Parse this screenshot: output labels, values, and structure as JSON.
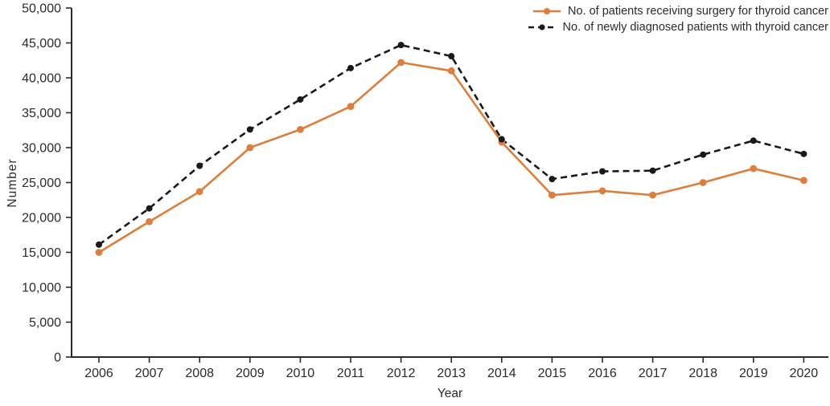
{
  "chart_data": {
    "type": "line",
    "title": "",
    "xlabel": "Year",
    "ylabel": "Number",
    "x": [
      2006,
      2007,
      2008,
      2009,
      2010,
      2011,
      2012,
      2013,
      2014,
      2015,
      2016,
      2017,
      2018,
      2019,
      2020
    ],
    "series": [
      {
        "name": "No. of patients receiving surgery for thyroid cancer",
        "color": "#DE7E3C",
        "line_style": "solid",
        "marker": "circle",
        "values": [
          15000,
          19400,
          23700,
          30000,
          32600,
          35900,
          42200,
          41000,
          30800,
          23200,
          23800,
          23200,
          25000,
          27000,
          25300
        ]
      },
      {
        "name": "No. of newly diagnosed patients with thyroid cancer",
        "color": "#1A1A1A",
        "line_style": "dashed",
        "marker": "circle",
        "values": [
          16100,
          21300,
          27400,
          32600,
          36900,
          41400,
          44700,
          43100,
          31200,
          25500,
          26600,
          26700,
          29000,
          31000,
          29100
        ]
      }
    ],
    "ylim": [
      0,
      50000
    ],
    "y_tick_values": [
      0,
      5000,
      10000,
      15000,
      20000,
      25000,
      30000,
      35000,
      40000,
      45000,
      50000
    ],
    "y_tick_labels": [
      "0",
      "5,000",
      "10,000",
      "15,000",
      "20,000",
      "25,000",
      "30,000",
      "35,000",
      "40,000",
      "45,000",
      "50,000"
    ],
    "x_tick_labels": [
      "2006",
      "2007",
      "2008",
      "2009",
      "2010",
      "2011",
      "2012",
      "2013",
      "2014",
      "2015",
      "2016",
      "2017",
      "2018",
      "2019",
      "2020"
    ],
    "grid": false,
    "legend_position": "top-right",
    "axis_color": "#2b2b2b"
  }
}
